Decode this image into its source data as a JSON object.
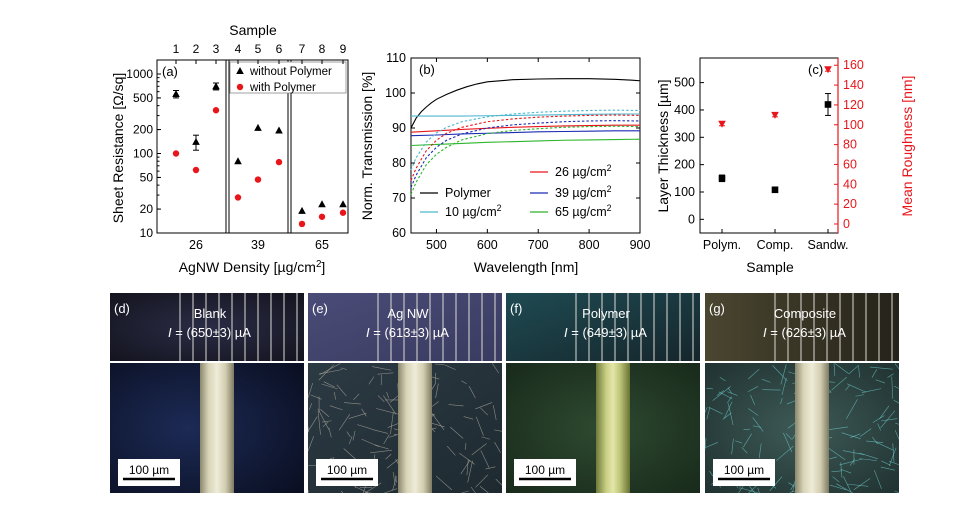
{
  "chart_data": [
    {
      "panel_label": "(a)",
      "type": "scatter",
      "y_scale": "log",
      "top_axis_title": "Sample",
      "top_ticks": [
        "1",
        "2",
        "3",
        "4",
        "5",
        "6",
        "7",
        "8",
        "9"
      ],
      "xlabel": "AgNW Density [µg/cm²]",
      "ylabel": "Sheet Resistance [Ω/sq]",
      "ylim": [
        10,
        1500
      ],
      "y_ticks": [
        "10",
        "20",
        "50",
        "100",
        "200",
        "500",
        "1000"
      ],
      "groups": [
        "26",
        "39",
        "65"
      ],
      "legend": [
        "without Polymer",
        "with Polymer"
      ],
      "series": [
        {
          "name": "without Polymer",
          "marker": "triangle",
          "color": "#000000",
          "points": [
            {
              "sample": 1,
              "y": 560,
              "err": 60
            },
            {
              "sample": 2,
              "y": 140,
              "err": 30
            },
            {
              "sample": 3,
              "y": 700,
              "err": 70
            },
            {
              "sample": 4,
              "y": 80
            },
            {
              "sample": 5,
              "y": 210
            },
            {
              "sample": 6,
              "y": 195
            },
            {
              "sample": 7,
              "y": 19
            },
            {
              "sample": 8,
              "y": 23
            },
            {
              "sample": 9,
              "y": 23
            }
          ]
        },
        {
          "name": "with Polymer",
          "marker": "circle",
          "color": "#e8161b",
          "points": [
            {
              "sample": 1,
              "y": 100
            },
            {
              "sample": 2,
              "y": 62
            },
            {
              "sample": 3,
              "y": 350
            },
            {
              "sample": 4,
              "y": 28
            },
            {
              "sample": 5,
              "y": 47
            },
            {
              "sample": 6,
              "y": 78
            },
            {
              "sample": 7,
              "y": 13
            },
            {
              "sample": 8,
              "y": 16
            },
            {
              "sample": 9,
              "y": 18
            }
          ]
        }
      ]
    },
    {
      "panel_label": "(b)",
      "type": "line",
      "xlabel": "Wavelength [nm]",
      "ylabel": "Norm. Transmission [%]",
      "xlim": [
        450,
        900
      ],
      "ylim": [
        60,
        110
      ],
      "x_ticks": [
        "500",
        "600",
        "700",
        "800",
        "900"
      ],
      "y_ticks": [
        "60",
        "70",
        "80",
        "90",
        "100",
        "110"
      ],
      "series": [
        {
          "name": "Polymer",
          "color": "#000000",
          "style": "solid",
          "x": [
            450,
            460,
            470,
            480,
            490,
            500,
            520,
            540,
            560,
            580,
            600,
            650,
            700,
            750,
            800,
            850,
            880,
            900
          ],
          "y": [
            90,
            92.8,
            94.6,
            96,
            97.2,
            98.2,
            99.6,
            100.8,
            101.8,
            102.6,
            103.2,
            103.8,
            104.0,
            104.1,
            104.1,
            103.9,
            103.7,
            103.5
          ]
        },
        {
          "name": "10 µg/cm²",
          "color": "#4fb6cf",
          "style": "solid",
          "x": [
            450,
            500,
            550,
            600,
            650,
            700,
            750,
            800,
            850,
            900
          ],
          "y": [
            93.4,
            93.4,
            93.4,
            93.5,
            93.6,
            93.7,
            93.8,
            93.9,
            94.0,
            94.0
          ]
        },
        {
          "name": "26 µg/cm²",
          "color": "#e8161b",
          "style": "solid",
          "x": [
            450,
            500,
            550,
            600,
            650,
            700,
            750,
            800,
            850,
            900
          ],
          "y": [
            88.8,
            89.2,
            89.6,
            89.9,
            90.2,
            90.4,
            90.6,
            90.7,
            90.8,
            90.8
          ]
        },
        {
          "name": "39 µg/cm²",
          "color": "#1c2bb3",
          "style": "solid",
          "x": [
            450,
            500,
            550,
            600,
            650,
            700,
            750,
            800,
            850,
            900
          ],
          "y": [
            87.8,
            88.0,
            88.3,
            88.5,
            88.7,
            88.9,
            89.0,
            89.1,
            89.2,
            89.2
          ]
        },
        {
          "name": "65 µg/cm²",
          "color": "#2db52d",
          "style": "solid",
          "x": [
            450,
            500,
            550,
            600,
            650,
            700,
            750,
            800,
            850,
            900
          ],
          "y": [
            85.0,
            85.3,
            85.6,
            85.9,
            86.1,
            86.3,
            86.5,
            86.6,
            86.7,
            86.8
          ]
        },
        {
          "name": "10 µg/cm²",
          "color": "#4fb6cf",
          "style": "dashed",
          "x": [
            450,
            460,
            480,
            500,
            520,
            550,
            600,
            650,
            700,
            750,
            800,
            850,
            900
          ],
          "y": [
            78,
            81.5,
            86,
            88.6,
            90.2,
            91.8,
            93.2,
            94.0,
            94.5,
            94.8,
            95.0,
            95.1,
            95.0
          ]
        },
        {
          "name": "26 µg/cm²",
          "color": "#e8161b",
          "style": "dashed",
          "x": [
            450,
            460,
            480,
            500,
            520,
            550,
            600,
            650,
            700,
            750,
            800,
            850,
            900
          ],
          "y": [
            75,
            78.5,
            83.5,
            86.5,
            88.5,
            90.2,
            91.8,
            92.6,
            93.1,
            93.4,
            93.6,
            93.7,
            93.6
          ]
        },
        {
          "name": "39 µg/cm²",
          "color": "#1c2bb3",
          "style": "dashed",
          "x": [
            450,
            460,
            480,
            500,
            520,
            550,
            600,
            650,
            700,
            750,
            800,
            850,
            900
          ],
          "y": [
            73,
            76.5,
            81.5,
            84.5,
            86.5,
            88.3,
            90.0,
            90.9,
            91.4,
            91.8,
            92.0,
            92.1,
            92.0
          ]
        },
        {
          "name": "65 µg/cm²",
          "color": "#2db52d",
          "style": "dashed",
          "x": [
            450,
            460,
            480,
            500,
            520,
            550,
            600,
            650,
            700,
            750,
            800,
            850,
            900
          ],
          "y": [
            71,
            74.5,
            79.5,
            82.5,
            84.5,
            86.6,
            88.4,
            89.3,
            89.8,
            90.2,
            90.4,
            90.5,
            90.4
          ]
        }
      ]
    },
    {
      "panel_label": "(c)",
      "type": "scatter",
      "xlabel": "Sample",
      "ylabel": "Layer Thickness [µm]",
      "y2label": "Mean Roughness [nm]",
      "categories": [
        "Polym.",
        "Comp.",
        "Sandw."
      ],
      "ylim": [
        -50,
        590
      ],
      "y_ticks": [
        "0",
        "100",
        "200",
        "300",
        "400",
        "500"
      ],
      "y2lim": [
        -9.09,
        167.3
      ],
      "y2_ticks": [
        "0",
        "20",
        "40",
        "60",
        "80",
        "100",
        "120",
        "140",
        "160"
      ],
      "series": [
        {
          "name": "Layer Thickness",
          "axis": "left",
          "marker": "square",
          "color": "#000000",
          "values": [
            150,
            108,
            420
          ],
          "errors": [
            12,
            8,
            40
          ]
        },
        {
          "name": "Mean Roughness",
          "axis": "right",
          "marker": "triangle-down",
          "color": "#e8161b",
          "values": [
            101,
            110,
            156
          ],
          "errors": [
            2,
            2,
            2
          ]
        }
      ],
      "right_axis_color": "#e8161b"
    }
  ],
  "photos": [
    {
      "label": "(d)",
      "title": "Blank",
      "current": "= (650±3) µA",
      "scale": "100 µm",
      "tone": "blank"
    },
    {
      "label": "(e)",
      "title": "Ag NW",
      "current": "= (613±3) µA",
      "scale": "100 µm",
      "tone": "agnw"
    },
    {
      "label": "(f)",
      "title": "Polymer",
      "current": "= (649±3) µA",
      "scale": "100 µm",
      "tone": "polymer"
    },
    {
      "label": "(g)",
      "title": "Composite",
      "current": "= (626±3) µA",
      "scale": "100 µm",
      "tone": "composite"
    }
  ],
  "current_symbol": "I"
}
